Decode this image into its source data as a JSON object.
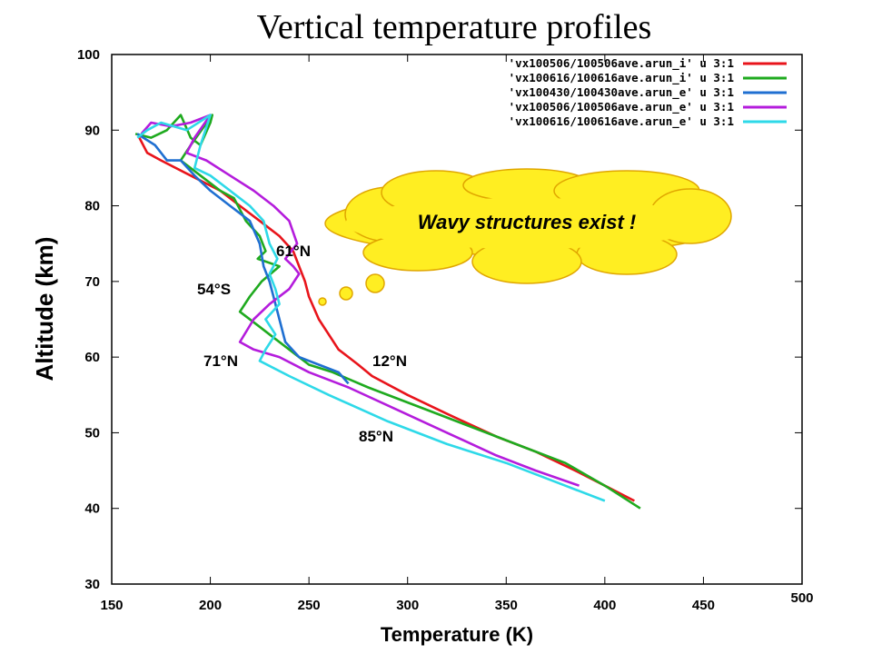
{
  "chart_data": {
    "type": "line",
    "title": "Vertical temperature profiles",
    "xlabel": "Temperature (K)",
    "ylabel": "Altitude (km)",
    "xlim": [
      150,
      500
    ],
    "ylim": [
      30,
      100
    ],
    "x_ticks": [
      "150",
      "200",
      "250",
      "300",
      "350",
      "400",
      "450",
      "500"
    ],
    "y_ticks": [
      "30",
      "40",
      "50",
      "60",
      "70",
      "80",
      "90",
      "100"
    ],
    "legend_position": "top-right",
    "grid": false,
    "series": [
      {
        "name": "'vx100506/100506ave.arun_i' u 3:1",
        "color": "#e8141b",
        "points": [
          [
            164,
            89
          ],
          [
            168,
            87
          ],
          [
            175,
            86
          ],
          [
            190,
            84
          ],
          [
            205,
            82
          ],
          [
            215,
            80
          ],
          [
            225,
            78
          ],
          [
            235,
            76
          ],
          [
            242,
            74
          ],
          [
            245,
            72
          ],
          [
            248,
            70
          ],
          [
            250,
            68
          ],
          [
            255,
            65
          ],
          [
            260,
            63
          ],
          [
            265,
            61
          ],
          [
            270,
            60
          ],
          [
            275,
            59
          ],
          [
            282,
            57.5
          ],
          [
            300,
            55
          ],
          [
            320,
            52.5
          ],
          [
            345,
            49.5
          ],
          [
            365,
            47.5
          ],
          [
            385,
            45
          ],
          [
            400,
            43
          ],
          [
            415,
            41
          ]
        ]
      },
      {
        "name": "'vx100616/100616ave.arun_i' u 3:1",
        "color": "#1faa1f",
        "points": [
          [
            162,
            89.5
          ],
          [
            170,
            89
          ],
          [
            178,
            90
          ],
          [
            185,
            92
          ],
          [
            190,
            89
          ],
          [
            195,
            88
          ],
          [
            200,
            91
          ],
          [
            201,
            92
          ],
          [
            190,
            88
          ],
          [
            185,
            86
          ],
          [
            195,
            84
          ],
          [
            205,
            82
          ],
          [
            212,
            81
          ],
          [
            218,
            78
          ],
          [
            225,
            76
          ],
          [
            228,
            74
          ],
          [
            224,
            73
          ],
          [
            235,
            72
          ],
          [
            226,
            70
          ],
          [
            220,
            68
          ],
          [
            215,
            66
          ],
          [
            225,
            64
          ],
          [
            230,
            63
          ],
          [
            240,
            61
          ],
          [
            250,
            59
          ],
          [
            262,
            58
          ],
          [
            280,
            56
          ],
          [
            310,
            53
          ],
          [
            340,
            50
          ],
          [
            360,
            48
          ],
          [
            380,
            46
          ],
          [
            400,
            43
          ],
          [
            418,
            40
          ]
        ]
      },
      {
        "name": "'vx100430/100430ave.arun_e' u 3:1",
        "color": "#1f6fd1",
        "points": [
          [
            163,
            89.5
          ],
          [
            172,
            88
          ],
          [
            178,
            86
          ],
          [
            185,
            86
          ],
          [
            192,
            84
          ],
          [
            200,
            82
          ],
          [
            210,
            80
          ],
          [
            220,
            78
          ],
          [
            225,
            75
          ],
          [
            227,
            72
          ],
          [
            230,
            70
          ],
          [
            232,
            68
          ],
          [
            235,
            65
          ],
          [
            238,
            62
          ],
          [
            245,
            60
          ],
          [
            255,
            59
          ],
          [
            265,
            58
          ],
          [
            270,
            56.5
          ]
        ]
      },
      {
        "name": "'vx100506/100506ave.arun_e' u 3:1",
        "color": "#b41cdc",
        "points": [
          [
            165,
            89.5
          ],
          [
            170,
            91
          ],
          [
            180,
            90.5
          ],
          [
            190,
            91
          ],
          [
            200,
            92
          ],
          [
            192,
            89
          ],
          [
            188,
            87
          ],
          [
            198,
            86
          ],
          [
            210,
            84
          ],
          [
            222,
            82
          ],
          [
            232,
            80
          ],
          [
            240,
            78
          ],
          [
            244,
            75
          ],
          [
            238,
            73
          ],
          [
            242,
            72
          ],
          [
            245,
            71
          ],
          [
            240,
            69
          ],
          [
            230,
            67
          ],
          [
            222,
            65
          ],
          [
            215,
            62
          ],
          [
            222,
            61
          ],
          [
            235,
            60
          ],
          [
            250,
            58
          ],
          [
            270,
            56
          ],
          [
            295,
            53
          ],
          [
            320,
            50
          ],
          [
            345,
            47
          ],
          [
            365,
            45
          ],
          [
            387,
            43
          ]
        ]
      },
      {
        "name": "'vx100616/100616ave.arun_e' u 3:1",
        "color": "#2ed9e8",
        "points": [
          [
            163,
            89
          ],
          [
            168,
            90
          ],
          [
            175,
            91
          ],
          [
            188,
            90
          ],
          [
            200,
            92
          ],
          [
            195,
            88
          ],
          [
            192,
            85
          ],
          [
            200,
            84
          ],
          [
            210,
            82
          ],
          [
            220,
            80
          ],
          [
            227,
            78
          ],
          [
            230,
            75
          ],
          [
            234,
            73
          ],
          [
            230,
            71
          ],
          [
            233,
            69
          ],
          [
            235,
            67
          ],
          [
            228,
            65
          ],
          [
            233,
            63
          ],
          [
            228,
            61
          ],
          [
            225,
            59.5
          ],
          [
            240,
            57.5
          ],
          [
            260,
            55
          ],
          [
            290,
            51.5
          ],
          [
            320,
            48.5
          ],
          [
            350,
            46
          ],
          [
            380,
            43
          ],
          [
            400,
            41
          ]
        ]
      }
    ],
    "annotations": [
      "61°N",
      "54°S",
      "71°N",
      "12°N",
      "85°N"
    ],
    "callout": "Wavy structures exist !"
  }
}
